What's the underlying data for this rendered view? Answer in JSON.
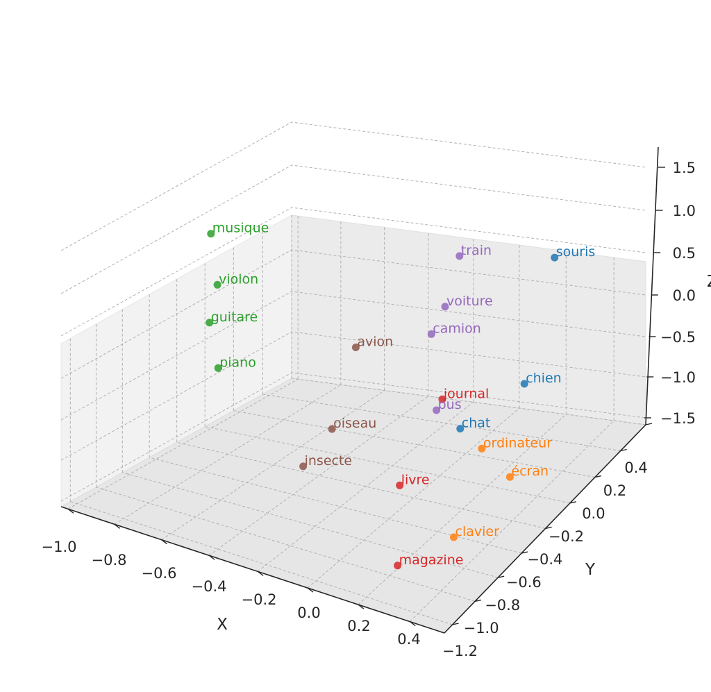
{
  "chart_data": {
    "type": "scatter3d",
    "title": "",
    "xlabel": "X",
    "ylabel": "Y",
    "zlabel": "Z",
    "xlim": [
      -1.0,
      0.4
    ],
    "ylim": [
      -1.2,
      0.4
    ],
    "zlim": [
      -1.5,
      1.5
    ],
    "xticks": [
      "−1.0",
      "−0.8",
      "−0.6",
      "−0.4",
      "−0.2",
      "0.0",
      "0.2",
      "0.4"
    ],
    "yticks": [
      "−1.2",
      "−1.0",
      "−0.8",
      "−0.6",
      "−0.4",
      "−0.2",
      "0.0",
      "0.2",
      "0.4"
    ],
    "zticks": [
      "−1.5",
      "−1.0",
      "−0.5",
      "0.0",
      "0.5",
      "1.0",
      "1.5"
    ],
    "grid": true,
    "groups": [
      {
        "color": "#1f77b4",
        "points": [
          {
            "label": "souris",
            "x": 0.25,
            "y": -0.15,
            "z": 1.5
          },
          {
            "label": "chien",
            "x": 0.35,
            "y": -0.55,
            "z": 0.7
          },
          {
            "label": "chat",
            "x": 0.3,
            "y": -0.9,
            "z": 0.5
          }
        ]
      },
      {
        "color": "#ff7f0e",
        "points": [
          {
            "label": "ordinateur",
            "x": 0.3,
            "y": -0.75,
            "z": 0.2
          },
          {
            "label": "écran",
            "x": 0.35,
            "y": -0.65,
            "z": -0.1
          },
          {
            "label": "clavier",
            "x": 0.25,
            "y": -0.85,
            "z": -0.6
          }
        ]
      },
      {
        "color": "#2ca02c",
        "points": [
          {
            "label": "musique",
            "x": -0.9,
            "y": -0.35,
            "z": 0.9
          },
          {
            "label": "violon",
            "x": -0.85,
            "y": -0.4,
            "z": 0.5
          },
          {
            "label": "guitare",
            "x": -0.8,
            "y": -0.55,
            "z": 0.3
          },
          {
            "label": "piano",
            "x": -0.9,
            "y": -0.3,
            "z": -0.4
          }
        ]
      },
      {
        "color": "#d62728",
        "points": [
          {
            "label": "journal",
            "x": 0.05,
            "y": -0.55,
            "z": 0.3
          },
          {
            "label": "livre",
            "x": 0.0,
            "y": -0.75,
            "z": -0.4
          },
          {
            "label": "magazine",
            "x": 0.15,
            "y": -1.05,
            "z": -0.8
          }
        ]
      },
      {
        "color": "#9467bd",
        "points": [
          {
            "label": "train",
            "x": -0.15,
            "y": -0.05,
            "z": 1.1
          },
          {
            "label": "voiture",
            "x": -0.15,
            "y": -0.15,
            "z": 0.7
          },
          {
            "label": "camion",
            "x": -0.2,
            "y": -0.15,
            "z": 0.4
          },
          {
            "label": "bus",
            "x": -0.05,
            "y": -0.4,
            "z": 0.0
          }
        ]
      },
      {
        "color": "#8c564b",
        "points": [
          {
            "label": "avion",
            "x": -0.45,
            "y": -0.2,
            "z": 0.1
          },
          {
            "label": "oiseau",
            "x": -0.3,
            "y": -0.65,
            "z": -0.2
          },
          {
            "label": "insecte",
            "x": -0.3,
            "y": -0.85,
            "z": -0.4
          }
        ]
      }
    ]
  }
}
